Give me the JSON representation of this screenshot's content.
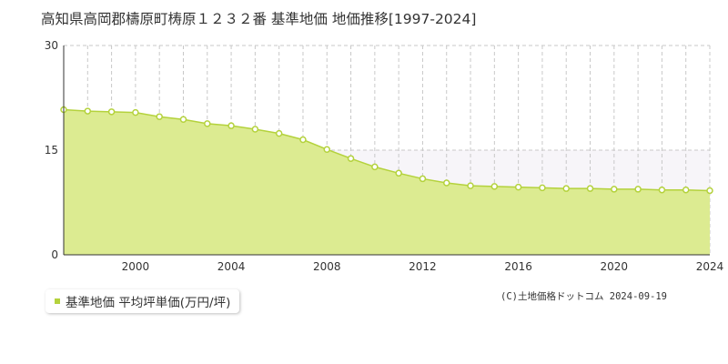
{
  "title": "高知県高岡郡檮原町梼原１２３２番 基準地価 地価推移[1997-2024]",
  "legend": {
    "label": "基準地価 平均坪単価(万円/坪)"
  },
  "copyright": "(C)土地価格ドットコム 2024-09-19",
  "colors": {
    "fill": "#dceb91",
    "line": "#b4d23c",
    "grid": "#c8c8c8",
    "band": "#f7f5f9",
    "axis": "#333333"
  },
  "chart_data": {
    "type": "area",
    "title": "高知県高岡郡檮原町梼原１２３２番 基準地価 地価推移[1997-2024]",
    "xlabel": "",
    "ylabel": "",
    "xlim": [
      1997,
      2024
    ],
    "ylim": [
      0,
      30
    ],
    "y_ticks": [
      0,
      15,
      30
    ],
    "x_tick_labels": [
      "2000",
      "2004",
      "2008",
      "2012",
      "2016",
      "2020",
      "2024"
    ],
    "x_ticks": [
      2000,
      2004,
      2008,
      2012,
      2016,
      2020,
      2024
    ],
    "grid": true,
    "legend_position": "bottom-left",
    "series": [
      {
        "name": "基準地価 平均坪単価(万円/坪)",
        "x": [
          1997,
          1998,
          1999,
          2000,
          2001,
          2002,
          2003,
          2004,
          2005,
          2006,
          2007,
          2008,
          2009,
          2010,
          2011,
          2012,
          2013,
          2014,
          2015,
          2016,
          2017,
          2018,
          2019,
          2020,
          2021,
          2022,
          2023,
          2024
        ],
        "values": [
          20.8,
          20.6,
          20.5,
          20.4,
          19.8,
          19.4,
          18.8,
          18.5,
          18.0,
          17.4,
          16.5,
          15.1,
          13.8,
          12.6,
          11.7,
          10.9,
          10.3,
          9.9,
          9.8,
          9.7,
          9.6,
          9.5,
          9.5,
          9.4,
          9.4,
          9.3,
          9.3,
          9.2
        ]
      }
    ]
  }
}
